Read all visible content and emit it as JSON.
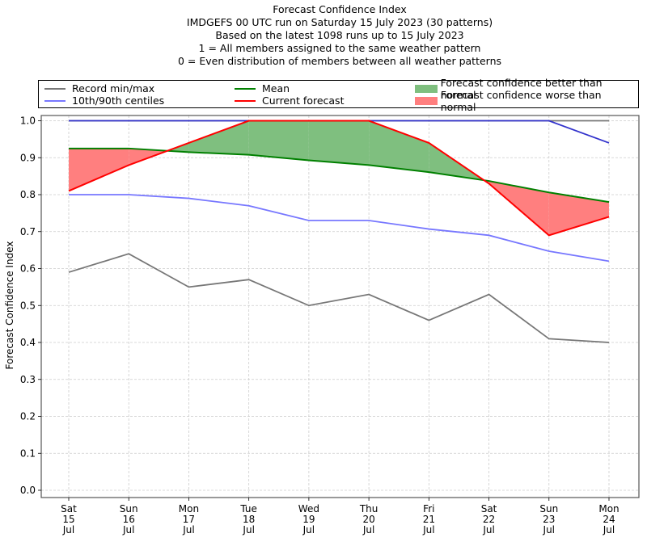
{
  "chart_data": {
    "type": "line",
    "title": "Forecast Confidence Index",
    "subtitle_lines": [
      "IMDGEFS 00 UTC run on Saturday 15 July 2023 (30 patterns)",
      "Based on the latest 1098 runs up to 15 July 2023",
      "1 = All members assigned to the same weather pattern",
      "0 = Even distribution of members between all weather patterns"
    ],
    "xlabel": "",
    "ylabel": "Forecast Confidence Index",
    "ylim": [
      0.0,
      1.0
    ],
    "yticks": [
      "0.0",
      "0.1",
      "0.2",
      "0.3",
      "0.4",
      "0.5",
      "0.6",
      "0.7",
      "0.8",
      "0.9",
      "1.0"
    ],
    "ytick_values": [
      0.0,
      0.1,
      0.2,
      0.3,
      0.4,
      0.5,
      0.6,
      0.7,
      0.8,
      0.9,
      1.0
    ],
    "categories": [
      [
        "Sat",
        "15",
        "Jul"
      ],
      [
        "Sun",
        "16",
        "Jul"
      ],
      [
        "Mon",
        "17",
        "Jul"
      ],
      [
        "Tue",
        "18",
        "Jul"
      ],
      [
        "Wed",
        "19",
        "Jul"
      ],
      [
        "Thu",
        "20",
        "Jul"
      ],
      [
        "Fri",
        "21",
        "Jul"
      ],
      [
        "Sat",
        "22",
        "Jul"
      ],
      [
        "Sun",
        "23",
        "Jul"
      ],
      [
        "Mon",
        "24",
        "Jul"
      ]
    ],
    "grid": true,
    "legend_position": "top",
    "series": [
      {
        "name": "Record min",
        "legend": "Record min/max",
        "color": "#777777",
        "values": [
          0.59,
          0.64,
          0.55,
          0.57,
          0.5,
          0.53,
          0.46,
          0.53,
          0.41,
          0.4
        ]
      },
      {
        "name": "Record max",
        "legend": "Record min/max",
        "color": "#777777",
        "values": [
          1.0,
          1.0,
          1.0,
          1.0,
          1.0,
          1.0,
          1.0,
          1.0,
          1.0,
          1.0
        ]
      },
      {
        "name": "10th centile",
        "legend": "10th/90th centiles",
        "color": "#7777ff",
        "values": [
          0.8,
          0.8,
          0.79,
          0.77,
          0.73,
          0.73,
          0.707,
          0.69,
          0.647,
          0.62
        ]
      },
      {
        "name": "90th centile",
        "legend": "10th/90th centiles",
        "color": "#3333cc",
        "values": [
          1.0,
          1.0,
          1.0,
          1.0,
          1.0,
          1.0,
          1.0,
          1.0,
          1.0,
          0.94
        ]
      },
      {
        "name": "Mean",
        "legend": "Mean",
        "color": "#008000",
        "values": [
          0.925,
          0.925,
          0.915,
          0.908,
          0.893,
          0.88,
          0.861,
          0.837,
          0.806,
          0.78
        ]
      },
      {
        "name": "Current forecast",
        "legend": "Current forecast",
        "color": "#ff0000",
        "values": [
          0.81,
          0.88,
          0.94,
          1.0,
          1.0,
          1.0,
          0.94,
          0.83,
          0.69,
          0.74
        ]
      }
    ],
    "fills": [
      {
        "name": "Forecast confidence better than normal",
        "color": "#7fbf7f",
        "condition": "current > mean"
      },
      {
        "name": "Forecast confidence worse than normal",
        "color": "#ff7f7f",
        "condition": "current < mean"
      }
    ]
  },
  "legend": {
    "record": "Record min/max",
    "centiles": "10th/90th centiles",
    "mean": "Mean",
    "current": "Current forecast",
    "better": "Forecast confidence better than normal",
    "worse": "Forecast confidence worse than normal"
  }
}
